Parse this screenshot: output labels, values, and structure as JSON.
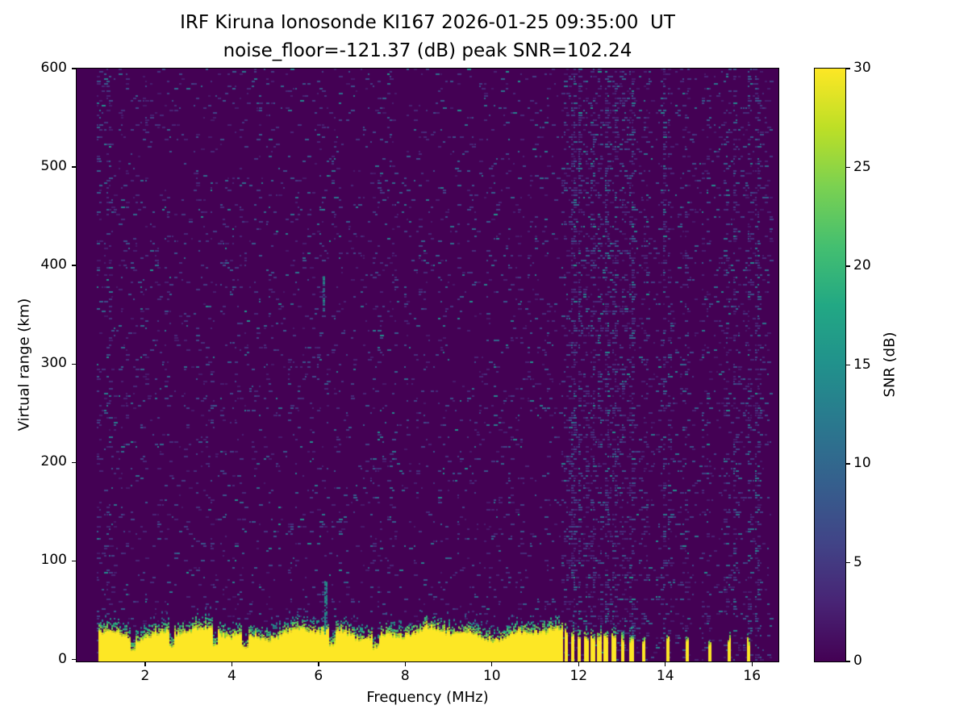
{
  "figure": {
    "background": "#ffffff"
  },
  "chart_data": {
    "type": "heatmap",
    "title": "IRF Kiruna Ionosonde KI167 2026-01-25 09:35:00  UT",
    "subtitle": "noise_floor=-121.37 (dB) peak SNR=102.24",
    "xlabel": "Frequency (MHz)",
    "ylabel": "Virtual range (km)",
    "x_range_mhz": [
      0.42,
      16.61
    ],
    "y_range_km": [
      -2,
      600
    ],
    "x_ticks": [
      2,
      4,
      6,
      8,
      10,
      12,
      14,
      16
    ],
    "y_ticks": [
      0,
      100,
      200,
      300,
      400,
      500,
      600
    ],
    "grid": false,
    "legend": "none",
    "colorbar": {
      "label": "SNR (dB)",
      "min": 0,
      "max": 30,
      "ticks": [
        0,
        5,
        10,
        15,
        20,
        25,
        30
      ],
      "colormap": "viridis",
      "stops": [
        [
          0.0,
          "#440154"
        ],
        [
          0.1,
          "#482475"
        ],
        [
          0.2,
          "#414487"
        ],
        [
          0.3,
          "#355f8d"
        ],
        [
          0.4,
          "#2a788e"
        ],
        [
          0.5,
          "#21918c"
        ],
        [
          0.6,
          "#22a884"
        ],
        [
          0.7,
          "#44bf70"
        ],
        [
          0.8,
          "#7ad151"
        ],
        [
          0.9,
          "#bddf26"
        ],
        [
          1.0,
          "#fde725"
        ]
      ]
    },
    "data_extent_mhz": [
      0.9,
      16.42
    ],
    "features": {
      "background_snr_db": 0,
      "noise_speckles": {
        "probability": 0.05,
        "snr_db_range": [
          2,
          16
        ]
      },
      "low_freq_noise_boost_below_mhz": 1.2,
      "interference_columns_mhz": [
        11.7,
        11.85,
        12.0,
        12.15,
        12.3,
        12.45,
        12.62,
        12.8,
        13.0,
        13.2,
        13.5,
        13.95,
        14.05,
        14.45,
        14.95,
        15.45,
        15.6,
        15.9,
        16.1
      ],
      "ground_echo": {
        "snr_db": 30,
        "top_km_mean": 26,
        "top_km_variation": 7,
        "transition_km": 12,
        "continuous_mhz": [
          0.9,
          11.62
        ],
        "intermittent_stripes_mhz": [
          11.7,
          11.85,
          12.0,
          12.15,
          12.3,
          12.45,
          12.62,
          12.8,
          13.0,
          13.2
        ],
        "intermittent_stripe_halfwidth_mhz": 0.05,
        "sparse_stripes_mhz": [
          13.5,
          14.05,
          14.5,
          15.0,
          15.45,
          15.9
        ],
        "sparse_stripe_halfwidth_mhz": 0.035,
        "notches_mhz": [
          1.7,
          2.6,
          3.6,
          4.3,
          6.3,
          7.3
        ],
        "spike": {
          "mhz": 6.15,
          "top_km": 80
        },
        "faint_echo": {
          "mhz": 6.1,
          "km_range": [
            355,
            395
          ]
        }
      }
    }
  }
}
